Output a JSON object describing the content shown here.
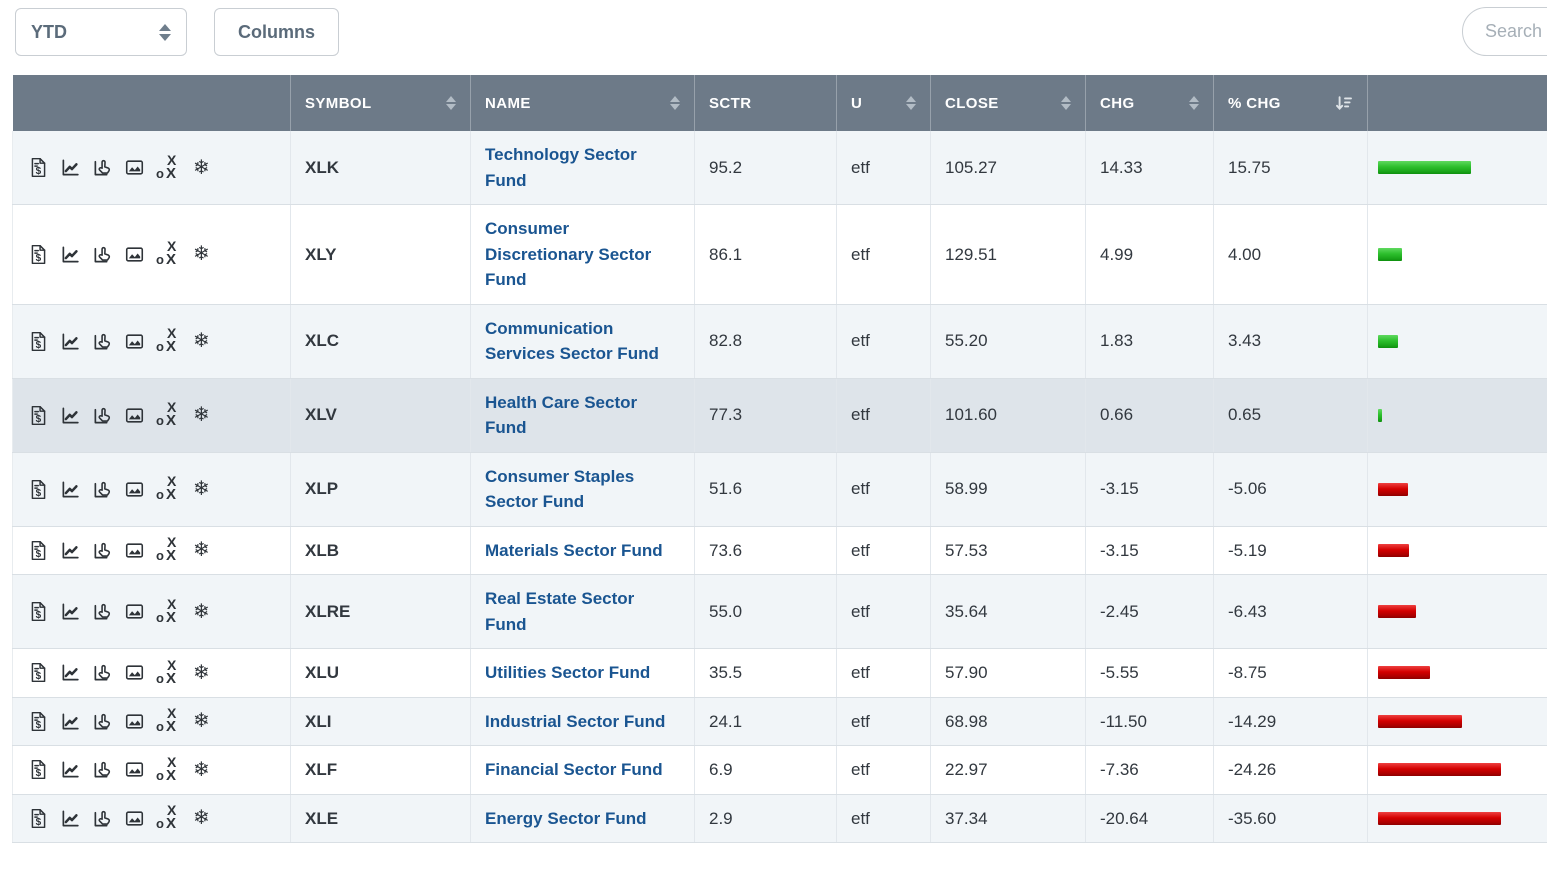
{
  "controls": {
    "period_value": "YTD",
    "columns_label": "Columns",
    "search_placeholder": "Search T"
  },
  "colors": {
    "header_bg": "#6d7a88",
    "row_alt_bg": "#f1f5f8",
    "row_highlight_bg": "#dee4ea",
    "link": "#1a5591",
    "positive_bar": "#2dbf2d",
    "negative_bar": "#d40000"
  },
  "row_action_icons": [
    {
      "name": "price-data-icon"
    },
    {
      "name": "sharpchart-icon"
    },
    {
      "name": "interactive-chart-icon"
    },
    {
      "name": "galleryview-icon"
    },
    {
      "name": "point-figure-icon"
    },
    {
      "name": "seasonality-icon"
    }
  ],
  "table": {
    "headers": [
      {
        "key": "actions",
        "label": "",
        "sort": "none"
      },
      {
        "key": "symbol",
        "label": "SYMBOL",
        "sort": "both"
      },
      {
        "key": "name",
        "label": "NAME",
        "sort": "both"
      },
      {
        "key": "sctr",
        "label": "SCTR",
        "sort": "none"
      },
      {
        "key": "universe",
        "label": "U",
        "sort": "both"
      },
      {
        "key": "close",
        "label": "CLOSE",
        "sort": "both"
      },
      {
        "key": "chg",
        "label": "CHG",
        "sort": "both"
      },
      {
        "key": "pctchg",
        "label": "% CHG",
        "sort": "desc"
      },
      {
        "key": "bar",
        "label": "",
        "sort": "none"
      }
    ],
    "rows": [
      {
        "symbol": "XLK",
        "name": "Technology Sector Fund",
        "sctr": "95.2",
        "u": "etf",
        "close": "105.27",
        "chg": "14.33",
        "pct_chg": "15.75",
        "highlighted": false
      },
      {
        "symbol": "XLY",
        "name": "Consumer Discretionary Sector Fund",
        "sctr": "86.1",
        "u": "etf",
        "close": "129.51",
        "chg": "4.99",
        "pct_chg": "4.00",
        "highlighted": false
      },
      {
        "symbol": "XLC",
        "name": "Communication Services Sector Fund",
        "sctr": "82.8",
        "u": "etf",
        "close": "55.20",
        "chg": "1.83",
        "pct_chg": "3.43",
        "highlighted": false
      },
      {
        "symbol": "XLV",
        "name": "Health Care Sector Fund",
        "sctr": "77.3",
        "u": "etf",
        "close": "101.60",
        "chg": "0.66",
        "pct_chg": "0.65",
        "highlighted": true
      },
      {
        "symbol": "XLP",
        "name": "Consumer Staples Sector Fund",
        "sctr": "51.6",
        "u": "etf",
        "close": "58.99",
        "chg": "-3.15",
        "pct_chg": "-5.06",
        "highlighted": false
      },
      {
        "symbol": "XLB",
        "name": "Materials Sector Fund",
        "sctr": "73.6",
        "u": "etf",
        "close": "57.53",
        "chg": "-3.15",
        "pct_chg": "-5.19",
        "highlighted": false
      },
      {
        "symbol": "XLRE",
        "name": "Real Estate Sector Fund",
        "sctr": "55.0",
        "u": "etf",
        "close": "35.64",
        "chg": "-2.45",
        "pct_chg": "-6.43",
        "highlighted": false
      },
      {
        "symbol": "XLU",
        "name": "Utilities Sector Fund",
        "sctr": "35.5",
        "u": "etf",
        "close": "57.90",
        "chg": "-5.55",
        "pct_chg": "-8.75",
        "highlighted": false
      },
      {
        "symbol": "XLI",
        "name": "Industrial Sector Fund",
        "sctr": "24.1",
        "u": "etf",
        "close": "68.98",
        "chg": "-11.50",
        "pct_chg": "-14.29",
        "highlighted": false
      },
      {
        "symbol": "XLF",
        "name": "Financial Sector Fund",
        "sctr": "6.9",
        "u": "etf",
        "close": "22.97",
        "chg": "-7.36",
        "pct_chg": "-24.26",
        "highlighted": false
      },
      {
        "symbol": "XLE",
        "name": "Energy Sector Fund",
        "sctr": "2.9",
        "u": "etf",
        "close": "37.34",
        "chg": "-20.64",
        "pct_chg": "-35.60",
        "highlighted": false
      }
    ]
  }
}
